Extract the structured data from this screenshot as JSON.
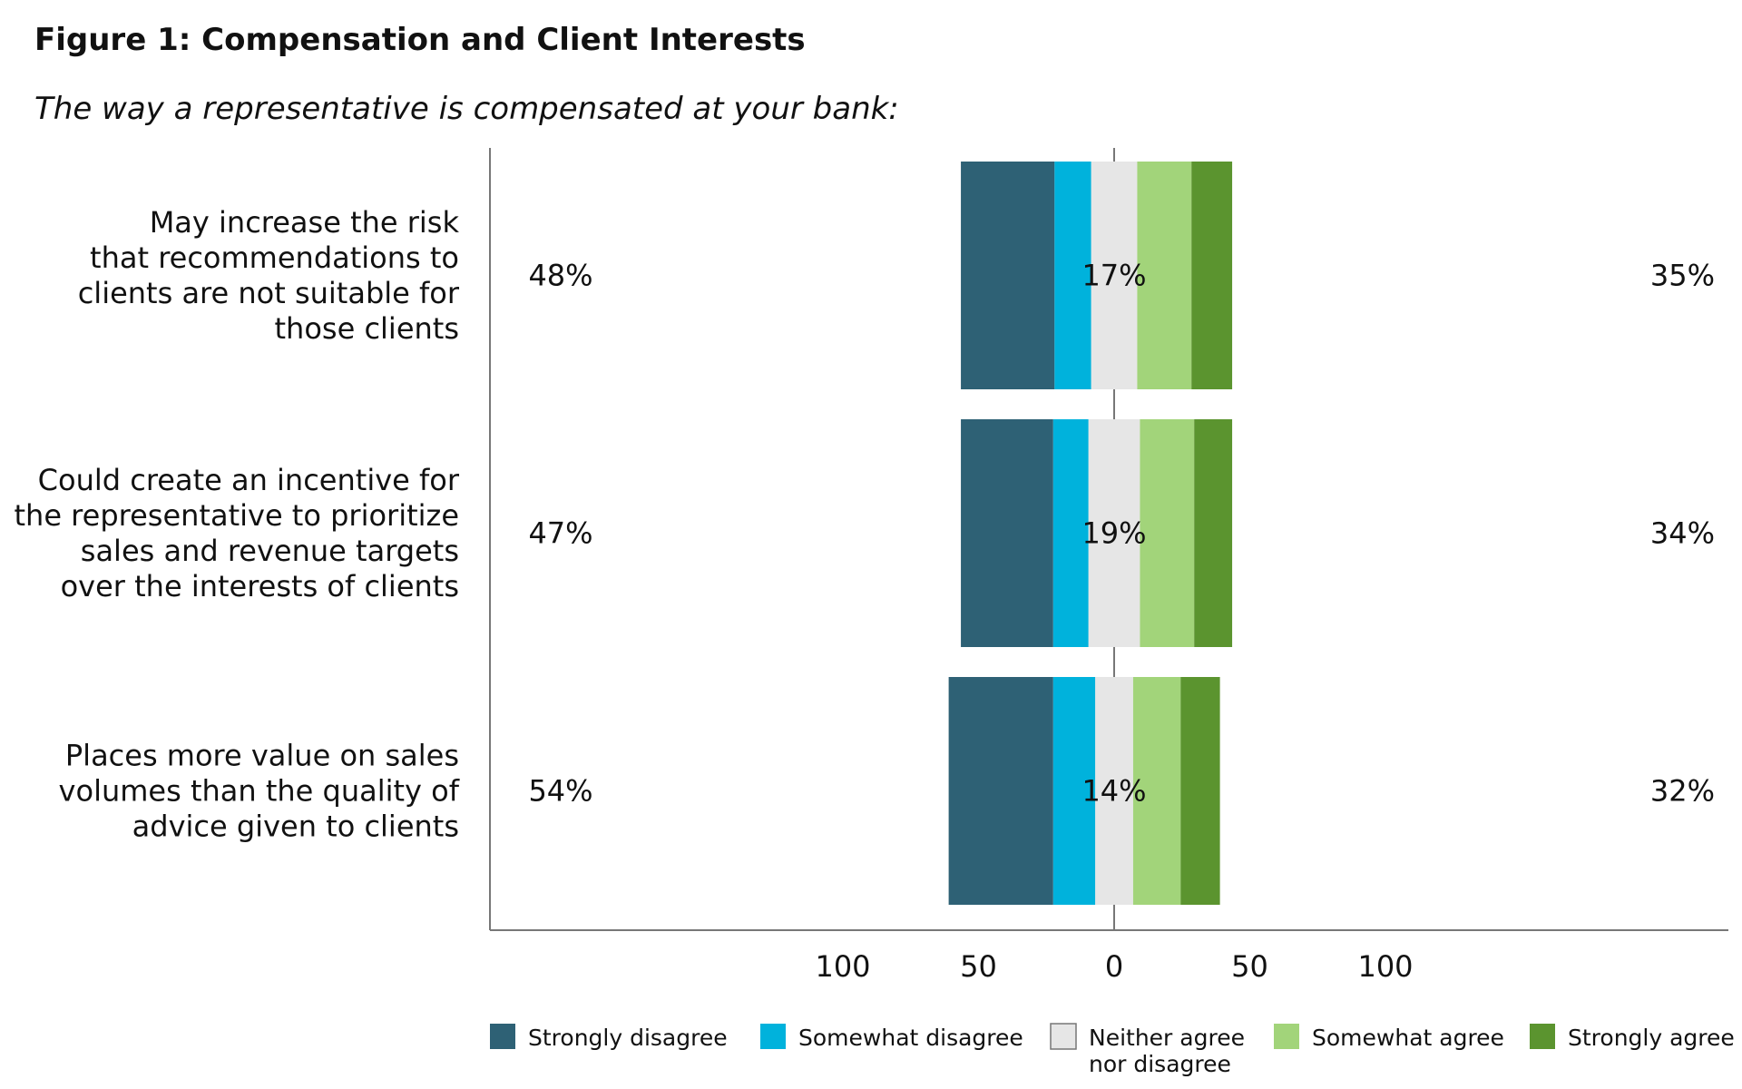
{
  "chart_data": {
    "type": "bar",
    "orientation": "horizontal",
    "layout": "diverging-stacked",
    "title": "Figure 1: Compensation and Client Interests",
    "subtitle": "The way a representative is compensated at your bank:",
    "categories": [
      "May increase the risk that recommendations to clients are not suitable for those clients",
      "Could create an incentive for the representative to prioritize sales and revenue targets over the interests of clients",
      "Places more value on sales volumes than the quality of advice given to clients"
    ],
    "category_lines": [
      [
        "May increase the risk",
        "that recommendations to",
        "clients are not suitable for",
        "those clients"
      ],
      [
        "Could create an incentive for",
        "the representative to prioritize",
        "sales and revenue targets",
        "over the interests of clients"
      ],
      [
        "Places more value on sales",
        "volumes than the quality of",
        "advice given to clients"
      ]
    ],
    "series": [
      {
        "name": "Strongly disagree",
        "color": "#2e6175",
        "side": "negative",
        "values": [
          34.5,
          34,
          38.5
        ]
      },
      {
        "name": "Somewhat disagree",
        "color": "#00b2dc",
        "side": "negative",
        "values": [
          13.5,
          13,
          15.5
        ]
      },
      {
        "name": "Neither agree nor disagree",
        "color": "#e6e6e6",
        "side": "neutral",
        "values": [
          17,
          19,
          14
        ]
      },
      {
        "name": "Somewhat agree",
        "color": "#a2d47a",
        "side": "positive",
        "values": [
          20,
          20,
          17.5
        ]
      },
      {
        "name": "Strongly agree",
        "color": "#5b942f",
        "side": "positive",
        "values": [
          15,
          14,
          14.5
        ]
      }
    ],
    "disagree_labels": [
      "48%",
      "47%",
      "54%"
    ],
    "neutral_labels": [
      "17%",
      "19%",
      "14%"
    ],
    "agree_labels": [
      "35%",
      "34%",
      "32%"
    ],
    "xlim": [
      -100,
      100
    ],
    "xticks": [
      -100,
      -50,
      0,
      50,
      100
    ],
    "xtick_labels": [
      "100",
      "50",
      "0",
      "50",
      "100"
    ],
    "legend": {
      "position": "bottom",
      "labels": [
        "Strongly disagree",
        "Somewhat disagree",
        "Neither agree",
        "nor disagree",
        "Somewhat agree",
        "Strongly agree"
      ]
    },
    "grid": false
  }
}
